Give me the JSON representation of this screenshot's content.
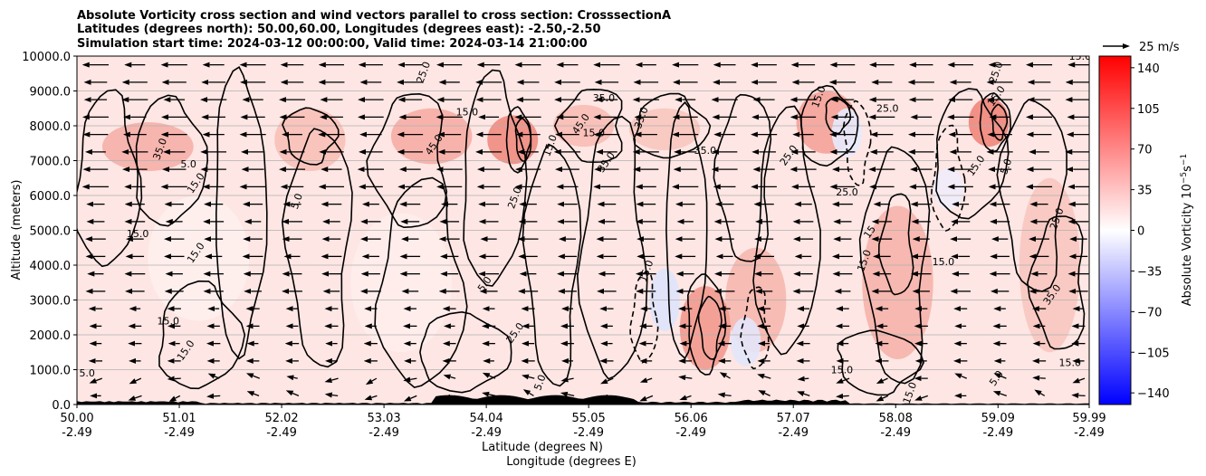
{
  "chart_data": {
    "type": "heatmap",
    "title_lines": [
      "Absolute Vorticity cross section and wind vectors parallel to cross section: CrosssectionA",
      "Latitudes (degrees north): 50.00,60.00, Longitudes (degrees east): -2.50,-2.50",
      "Simulation start time: 2024-03-12 00:00:00, Valid time: 2024-03-14 21:00:00"
    ],
    "xlabel_lines": [
      "Latitude (degrees N)",
      "Longitude (degrees E)"
    ],
    "ylabel": "Altitude (meters)",
    "x_ticks": [
      {
        "lat": "50.00",
        "lon": "-2.49",
        "value": 50.0
      },
      {
        "lat": "51.01",
        "lon": "-2.49",
        "value": 51.01
      },
      {
        "lat": "52.02",
        "lon": "-2.49",
        "value": 52.02
      },
      {
        "lat": "53.03",
        "lon": "-2.49",
        "value": 53.03
      },
      {
        "lat": "54.04",
        "lon": "-2.49",
        "value": 54.04
      },
      {
        "lat": "55.05",
        "lon": "-2.49",
        "value": 55.05
      },
      {
        "lat": "56.06",
        "lon": "-2.49",
        "value": 56.06
      },
      {
        "lat": "57.07",
        "lon": "-2.49",
        "value": 57.07
      },
      {
        "lat": "58.08",
        "lon": "-2.49",
        "value": 58.08
      },
      {
        "lat": "59.09",
        "lon": "-2.49",
        "value": 59.09
      },
      {
        "lat": "59.99",
        "lon": "-2.49",
        "value": 59.99
      }
    ],
    "xlim": [
      50.0,
      59.99
    ],
    "y_ticks": [
      "0.0",
      "1000.0",
      "2000.0",
      "3000.0",
      "4000.0",
      "5000.0",
      "6000.0",
      "7000.0",
      "8000.0",
      "9000.0",
      "10000.0"
    ],
    "ylim": [
      0,
      10000
    ],
    "grid": "horizontal",
    "colorbar": {
      "label": "Absolute Vorticity 10",
      "label_exp": "−5",
      "label_unit": "s",
      "label_unit_exp": "−1",
      "ticks": [
        "140",
        "105",
        "70",
        "35",
        "0",
        "−35",
        "−70",
        "−105",
        "−140"
      ],
      "tick_values": [
        140,
        105,
        70,
        35,
        0,
        -35,
        -70,
        -105,
        -140
      ],
      "range": [
        -150,
        150
      ],
      "colors": {
        "neg": "#0000ff",
        "mid": "#ffffff",
        "pos": "#ff0000"
      }
    },
    "quiver_key": {
      "label": "25 m/s",
      "value": 25
    },
    "wind": {
      "direction": "left",
      "speed_ms": 25
    },
    "contour_labels": [
      {
        "text": "25.0",
        "lat": 53.45,
        "alt": 9500
      },
      {
        "text": "15.0",
        "lat": 53.85,
        "alt": 8300
      },
      {
        "text": "45.0",
        "lat": 53.55,
        "alt": 7400
      },
      {
        "text": "35.0",
        "lat": 50.85,
        "alt": 7300
      },
      {
        "text": "5.0",
        "lat": 51.1,
        "alt": 6800
      },
      {
        "text": "15.0",
        "lat": 51.2,
        "alt": 6300
      },
      {
        "text": "5.0",
        "lat": 52.2,
        "alt": 5800
      },
      {
        "text": "15.0",
        "lat": 50.6,
        "alt": 4800
      },
      {
        "text": "15.0",
        "lat": 51.2,
        "alt": 4300
      },
      {
        "text": "25.0",
        "lat": 54.35,
        "alt": 5900
      },
      {
        "text": "35.0",
        "lat": 55.2,
        "alt": 8700
      },
      {
        "text": "45.0",
        "lat": 55.0,
        "alt": 8000
      },
      {
        "text": "35.0",
        "lat": 55.6,
        "alt": 8200
      },
      {
        "text": "15.0",
        "lat": 55.1,
        "alt": 7700
      },
      {
        "text": "35.0",
        "lat": 55.25,
        "alt": 6900
      },
      {
        "text": "15.0",
        "lat": 54.7,
        "alt": 7400
      },
      {
        "text": "15.0",
        "lat": 50.9,
        "alt": 2300
      },
      {
        "text": "25.0",
        "lat": 54.35,
        "alt": 2000
      },
      {
        "text": "15.0",
        "lat": 55.65,
        "alt": 3800
      },
      {
        "text": "35.0",
        "lat": 56.2,
        "alt": 7200
      },
      {
        "text": "25.0",
        "lat": 57.05,
        "alt": 7100
      },
      {
        "text": "15.0",
        "lat": 57.35,
        "alt": 8800
      },
      {
        "text": "25.0",
        "lat": 58.0,
        "alt": 8400
      },
      {
        "text": "15.0",
        "lat": 59.1,
        "alt": 8800
      },
      {
        "text": "25.0",
        "lat": 59.1,
        "alt": 9500
      },
      {
        "text": "15.0",
        "lat": 59.9,
        "alt": 9900
      },
      {
        "text": "15.0",
        "lat": 58.9,
        "alt": 6800
      },
      {
        "text": "5.0",
        "lat": 59.2,
        "alt": 6800
      },
      {
        "text": "25.0",
        "lat": 57.6,
        "alt": 6000
      },
      {
        "text": "15",
        "lat": 57.85,
        "alt": 4900
      },
      {
        "text": "15.0",
        "lat": 57.8,
        "alt": 4100
      },
      {
        "text": "15.0",
        "lat": 58.55,
        "alt": 4000
      },
      {
        "text": "35.0",
        "lat": 59.65,
        "alt": 3100
      },
      {
        "text": "25.0",
        "lat": 59.7,
        "alt": 5300
      },
      {
        "text": "15.0",
        "lat": 59.8,
        "alt": 1100
      },
      {
        "text": "5.0",
        "lat": 59.1,
        "alt": 700
      },
      {
        "text": "15.0",
        "lat": 58.25,
        "alt": 300
      },
      {
        "text": "5.0",
        "lat": 50.1,
        "alt": 800
      },
      {
        "text": "15.0",
        "lat": 51.1,
        "alt": 1500
      },
      {
        "text": "5.0",
        "lat": 54.6,
        "alt": 600
      },
      {
        "text": "15.0",
        "lat": 57.55,
        "alt": 900
      },
      {
        "text": "5.0",
        "lat": 54.05,
        "alt": 3400
      }
    ]
  }
}
